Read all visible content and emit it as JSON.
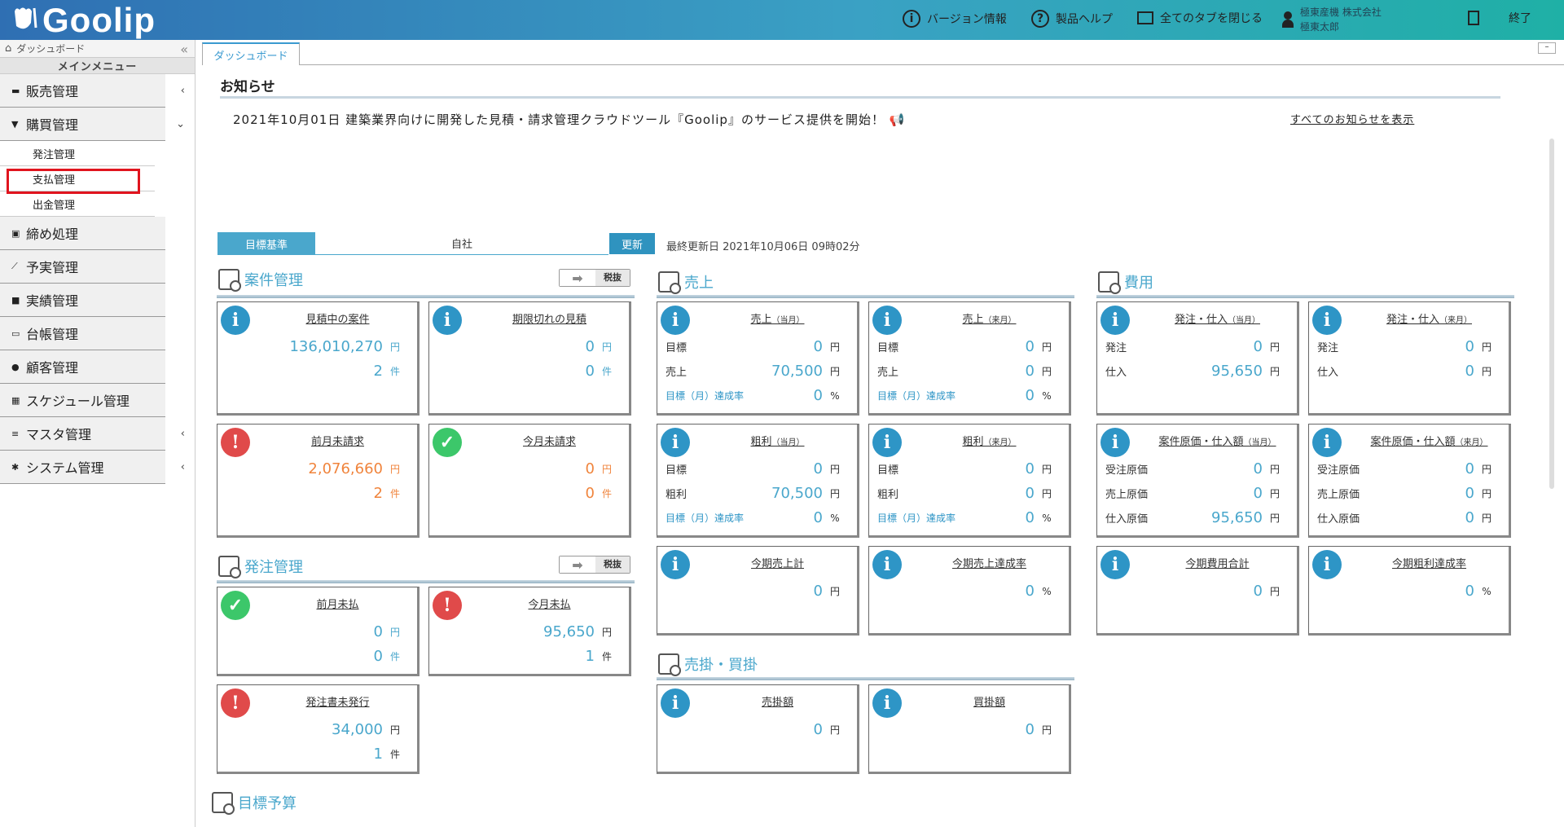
{
  "app": {
    "brand": "Goolip"
  },
  "header": {
    "version": "バージョン情報",
    "help": "製品ヘルプ",
    "close_tabs": "全てのタブを閉じる",
    "company": "極東産機 株式会社",
    "user": "極東太郎",
    "exit": "終了"
  },
  "sidebar": {
    "home": "ダッシュボード",
    "main_menu": "メインメニュー",
    "groups": [
      "販売管理",
      "購買管理",
      "締め処理",
      "予実管理",
      "実績管理",
      "台帳管理",
      "顧客管理",
      "スケジュール管理",
      "マスタ管理",
      "システム管理"
    ],
    "subs": [
      "発注管理",
      "支払管理",
      "出金管理"
    ]
  },
  "tab": {
    "label": "ダッシュボード"
  },
  "news": {
    "title": "お知らせ",
    "item": "2021年10月01日 建築業界向けに開発した見積・請求管理クラウドツール『Goolip』のサービス提供を開始！",
    "all": "すべてのお知らせを表示"
  },
  "target": {
    "label": "目標基準",
    "value": "自社",
    "update": "更新",
    "last": "最終更新日 2021年10月06日 09時02分"
  },
  "sections": {
    "anken": "案件管理",
    "hatchu": "発注管理",
    "uriage": "売上",
    "hiyo": "費用",
    "urikake": "売掛・買掛",
    "yosan": "目標予算",
    "tax": "税抜"
  },
  "units": {
    "yen": "円",
    "ken": "件",
    "pct": "%"
  },
  "labels": {
    "target": "目標",
    "sales": "売上",
    "rate": "目標（月）達成率",
    "gross": "粗利",
    "order": "発注",
    "purchase": "仕入",
    "recv_cost": "受注原価",
    "sales_cost": "売上原価",
    "purch_cost": "仕入原価",
    "cur": "（当月）",
    "next": "（来月）"
  },
  "cards": {
    "c1": {
      "title": "見積中の案件",
      "v1": "136,010,270",
      "v2": "2"
    },
    "c2": {
      "title": "期限切れの見積",
      "v1": "0",
      "v2": "0"
    },
    "c3": {
      "title": "前月未請求",
      "v1": "2,076,660",
      "v2": "2"
    },
    "c4": {
      "title": "今月未請求",
      "v1": "0",
      "v2": "0"
    },
    "c5": {
      "title": "前月未払",
      "v1": "0",
      "v2": "0"
    },
    "c6": {
      "title": "今月未払",
      "v1": "95,650",
      "v2": "1"
    },
    "c7": {
      "title": "発注書未発行",
      "v1": "34,000",
      "v2": "1"
    },
    "s1": {
      "title": "売上",
      "v1": "0",
      "v2": "70,500",
      "v3": "0"
    },
    "s2": {
      "title": "売上",
      "v1": "0",
      "v2": "0",
      "v3": "0"
    },
    "s3": {
      "title": "粗利",
      "v1": "0",
      "v2": "70,500",
      "v3": "0"
    },
    "s4": {
      "title": "粗利",
      "v1": "0",
      "v2": "0",
      "v3": "0"
    },
    "s5": {
      "title": "今期売上計",
      "v1": "0"
    },
    "s6": {
      "title": "今期売上達成率",
      "v1": "0"
    },
    "h1": {
      "title": "発注・仕入",
      "v1": "0",
      "v2": "95,650"
    },
    "h2": {
      "title": "発注・仕入",
      "v1": "0",
      "v2": "0"
    },
    "h3": {
      "title": "案件原価・仕入額",
      "v1": "0",
      "v2": "0",
      "v3": "95,650"
    },
    "h4": {
      "title": "案件原価・仕入額",
      "v1": "0",
      "v2": "0",
      "v3": "0"
    },
    "h5": {
      "title": "今期費用合計",
      "v1": "0"
    },
    "h6": {
      "title": "今期粗利達成率",
      "v1": "0"
    },
    "u1": {
      "title": "売掛額",
      "v1": "0"
    },
    "u2": {
      "title": "買掛額",
      "v1": "0"
    }
  }
}
